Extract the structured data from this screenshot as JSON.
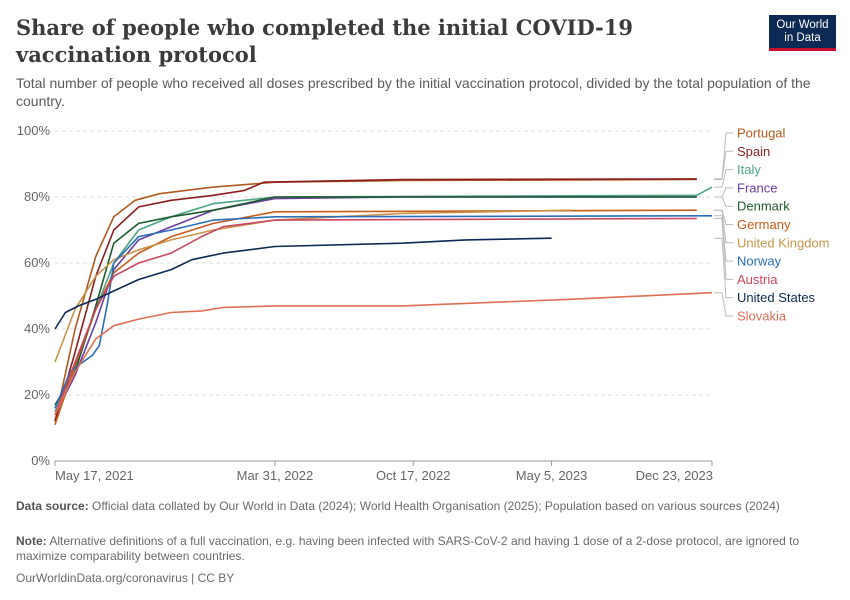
{
  "header": {
    "title": "Share of people who completed the initial COVID-19 vaccination protocol",
    "subtitle": "Total number of people who received all doses prescribed by the initial vaccination protocol, divided by the total population of the country.",
    "logo_line1": "Our World",
    "logo_line2": "in Data"
  },
  "footer": {
    "source_label": "Data source:",
    "source_text": " Official data collated by Our World in Data (2024); World Health Organisation (2025); Population based on various sources (2024)",
    "note_label": "Note:",
    "note_text": " Alternative definitions of a full vaccination, e.g. having been infected with SARS-CoV-2 and having 1 dose of a 2-dose protocol, are ignored to maximize comparability between countries.",
    "url": "OurWorldinData.org/coronavirus | CC BY"
  },
  "colors": {
    "grid": "#dddddd",
    "axis": "#999999",
    "logo_bg": "#0d2a54",
    "logo_accent": "#c8102e"
  },
  "chart_data": {
    "type": "line",
    "x_ticks": [
      "May 17, 2021",
      "Mar 31, 2022",
      "Oct 17, 2022",
      "May 5, 2023",
      "Dec 23, 2023"
    ],
    "y_ticks": [
      "0%",
      "20%",
      "40%",
      "60%",
      "80%",
      "100%"
    ],
    "xlim": [
      "2021-05-17",
      "2023-12-23"
    ],
    "ylim": [
      0,
      100
    ],
    "grid": "horizontal dashed",
    "legend_placement": "right",
    "series": [
      {
        "name": "Portugal",
        "color": "#b05a1e",
        "points": [
          [
            "2021-05-17",
            12
          ],
          [
            "2021-06-15",
            40
          ],
          [
            "2021-07-15",
            62
          ],
          [
            "2021-08-10",
            74
          ],
          [
            "2021-09-10",
            79
          ],
          [
            "2021-10-15",
            81
          ],
          [
            "2022-01-01",
            83
          ],
          [
            "2022-03-31",
            84.5
          ],
          [
            "2022-10-01",
            85
          ],
          [
            "2023-12-01",
            85.3
          ]
        ]
      },
      {
        "name": "Spain",
        "color": "#8b1e1e",
        "points": [
          [
            "2021-05-17",
            12
          ],
          [
            "2021-06-15",
            33
          ],
          [
            "2021-07-15",
            56
          ],
          [
            "2021-08-10",
            70
          ],
          [
            "2021-09-15",
            77
          ],
          [
            "2021-11-01",
            79
          ],
          [
            "2022-01-01",
            80.5
          ],
          [
            "2022-02-15",
            82
          ],
          [
            "2022-03-15",
            84.5
          ],
          [
            "2022-10-01",
            85.3
          ],
          [
            "2023-12-01",
            85.5
          ]
        ]
      },
      {
        "name": "Italy",
        "color": "#4ca586",
        "points": [
          [
            "2021-05-17",
            15
          ],
          [
            "2021-06-15",
            28
          ],
          [
            "2021-07-15",
            46
          ],
          [
            "2021-08-10",
            60
          ],
          [
            "2021-09-15",
            70
          ],
          [
            "2021-11-01",
            74
          ],
          [
            "2022-01-01",
            78
          ],
          [
            "2022-03-31",
            80
          ],
          [
            "2023-12-01",
            80.5
          ],
          [
            "2023-12-23",
            83
          ]
        ]
      },
      {
        "name": "France",
        "color": "#6b3fa0",
        "points": [
          [
            "2021-05-17",
            14
          ],
          [
            "2021-06-15",
            26
          ],
          [
            "2021-07-15",
            42
          ],
          [
            "2021-08-10",
            58
          ],
          [
            "2021-09-15",
            67
          ],
          [
            "2021-11-01",
            71
          ],
          [
            "2022-01-01",
            76
          ],
          [
            "2022-03-31",
            79.5
          ],
          [
            "2022-10-01",
            80
          ],
          [
            "2023-12-01",
            80
          ]
        ]
      },
      {
        "name": "Denmark",
        "color": "#1e5a2e",
        "points": [
          [
            "2021-05-17",
            17
          ],
          [
            "2021-06-15",
            27
          ],
          [
            "2021-07-15",
            47
          ],
          [
            "2021-08-10",
            66
          ],
          [
            "2021-09-15",
            72
          ],
          [
            "2021-11-01",
            74
          ],
          [
            "2022-01-01",
            76
          ],
          [
            "2022-03-31",
            80
          ],
          [
            "2023-12-01",
            80
          ]
        ]
      },
      {
        "name": "Germany",
        "color": "#c65c1a",
        "points": [
          [
            "2021-05-17",
            11
          ],
          [
            "2021-06-15",
            29
          ],
          [
            "2021-07-15",
            46
          ],
          [
            "2021-08-10",
            57
          ],
          [
            "2021-09-15",
            63
          ],
          [
            "2021-11-01",
            68
          ],
          [
            "2022-01-01",
            72
          ],
          [
            "2022-03-31",
            75.5
          ],
          [
            "2023-12-01",
            76
          ]
        ]
      },
      {
        "name": "United Kingdom",
        "color": "#c9944a",
        "points": [
          [
            "2021-05-17",
            30
          ],
          [
            "2021-06-15",
            46
          ],
          [
            "2021-07-15",
            56
          ],
          [
            "2021-08-10",
            61
          ],
          [
            "2021-09-15",
            64
          ],
          [
            "2021-11-01",
            67
          ],
          [
            "2022-01-01",
            70
          ],
          [
            "2022-03-31",
            73
          ],
          [
            "2022-10-01",
            75
          ],
          [
            "2023-06-01",
            76
          ]
        ]
      },
      {
        "name": "Norway",
        "color": "#2a6ebb",
        "points": [
          [
            "2021-05-17",
            16
          ],
          [
            "2021-06-08",
            27
          ],
          [
            "2021-06-20",
            29
          ],
          [
            "2021-07-10",
            32
          ],
          [
            "2021-07-20",
            35
          ],
          [
            "2021-08-01",
            48
          ],
          [
            "2021-08-10",
            60
          ],
          [
            "2021-09-15",
            68
          ],
          [
            "2021-11-01",
            70
          ],
          [
            "2022-01-01",
            73
          ],
          [
            "2022-03-31",
            74
          ],
          [
            "2023-12-23",
            74.3
          ]
        ]
      },
      {
        "name": "Austria",
        "color": "#c9485f",
        "points": [
          [
            "2021-05-17",
            14
          ],
          [
            "2021-06-15",
            30
          ],
          [
            "2021-07-15",
            46
          ],
          [
            "2021-08-10",
            56
          ],
          [
            "2021-09-15",
            60
          ],
          [
            "2021-11-01",
            63
          ],
          [
            "2021-12-15",
            68
          ],
          [
            "2022-01-15",
            71
          ],
          [
            "2022-03-31",
            73
          ],
          [
            "2023-12-01",
            73.5
          ]
        ]
      },
      {
        "name": "United States",
        "color": "#0d2a54",
        "points": [
          [
            "2021-05-17",
            40
          ],
          [
            "2021-06-01",
            45
          ],
          [
            "2021-06-20",
            47
          ],
          [
            "2021-07-15",
            49
          ],
          [
            "2021-08-15",
            52
          ],
          [
            "2021-09-15",
            55
          ],
          [
            "2021-11-01",
            58
          ],
          [
            "2021-12-01",
            61
          ],
          [
            "2022-01-15",
            63
          ],
          [
            "2022-03-31",
            65
          ],
          [
            "2022-10-01",
            66
          ],
          [
            "2023-01-01",
            67
          ],
          [
            "2023-05-05",
            67.5
          ]
        ]
      },
      {
        "name": "Slovakia",
        "color": "#e06e55",
        "points": [
          [
            "2021-05-17",
            14
          ],
          [
            "2021-06-15",
            27
          ],
          [
            "2021-07-15",
            37
          ],
          [
            "2021-08-10",
            41
          ],
          [
            "2021-09-15",
            43
          ],
          [
            "2021-11-01",
            45
          ],
          [
            "2021-12-15",
            45.5
          ],
          [
            "2022-01-15",
            46.5
          ],
          [
            "2022-03-31",
            47
          ],
          [
            "2022-10-01",
            47
          ],
          [
            "2023-06-01",
            49
          ],
          [
            "2023-12-23",
            51
          ]
        ]
      }
    ]
  }
}
